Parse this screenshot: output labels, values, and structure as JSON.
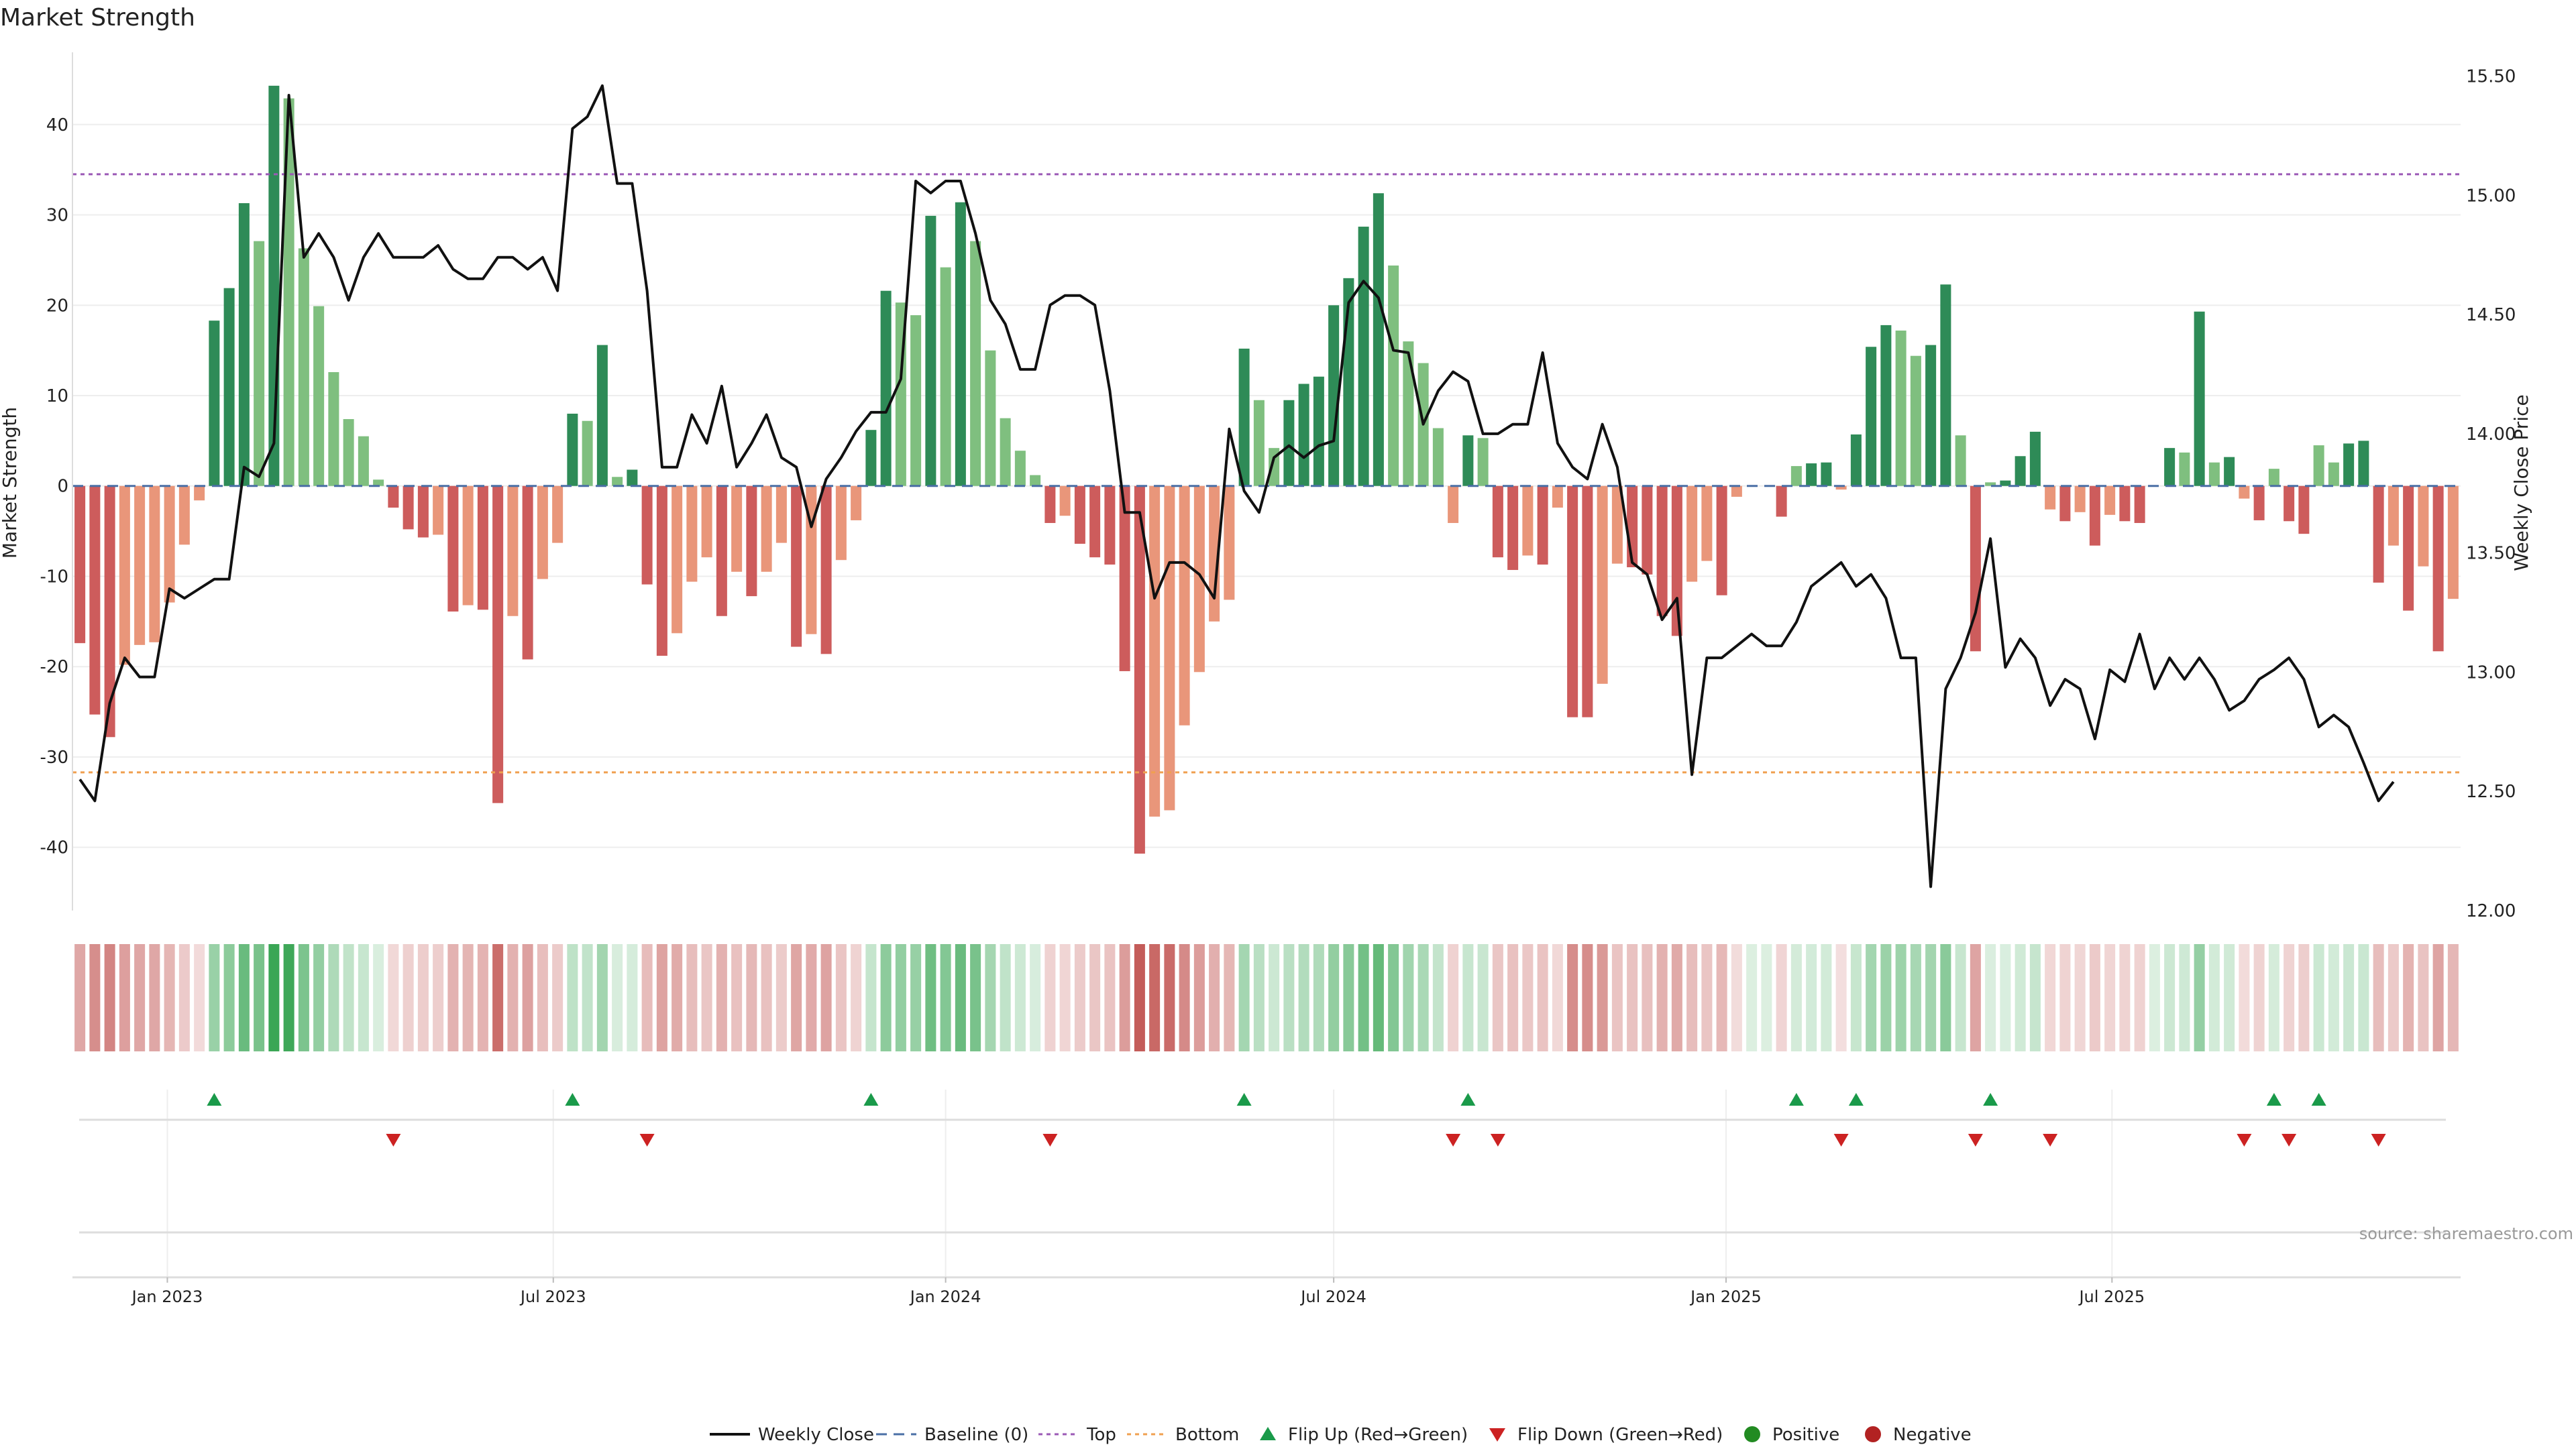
{
  "chart_data": {
    "type": "bar",
    "title": "Market Strength",
    "ylabel": "Market Strength",
    "ylabel_right": "Weekly Close Price",
    "ylim": [
      -47,
      48
    ],
    "ylim_right": [
      12.0,
      15.6
    ],
    "yticks": [
      -40,
      -30,
      -20,
      -10,
      0,
      10,
      20,
      30,
      40
    ],
    "yticks_right": [
      "12.00",
      "12.50",
      "13.00",
      "13.50",
      "14.00",
      "14.50",
      "15.00",
      "15.50"
    ],
    "top_threshold": 34.5,
    "bottom_threshold": -31.7,
    "x_start": "2022-11-21",
    "bar_interval_days": 7,
    "x_tick_labels": [
      {
        "label": "Jan 2023",
        "date": "2023-01-01"
      },
      {
        "label": "Jul 2023",
        "date": "2023-07-01"
      },
      {
        "label": "Jan 2024",
        "date": "2024-01-01"
      },
      {
        "label": "Jul 2024",
        "date": "2024-07-01"
      },
      {
        "label": "Jan 2025",
        "date": "2025-01-01"
      },
      {
        "label": "Jul 2025",
        "date": "2025-07-01"
      }
    ],
    "strength": [
      -17.4,
      -25.3,
      -27.8,
      -19.8,
      -17.6,
      -17.3,
      -12.9,
      -6.5,
      -1.6,
      18.3,
      21.9,
      31.3,
      27.1,
      44.3,
      42.9,
      26.3,
      19.9,
      12.6,
      7.4,
      5.5,
      0.7,
      -2.4,
      -4.8,
      -5.7,
      -5.4,
      -13.9,
      -13.2,
      -13.7,
      -35.1,
      -14.4,
      -19.2,
      -10.3,
      -6.3,
      8.0,
      7.2,
      15.6,
      1.0,
      1.8,
      -10.9,
      -18.8,
      -16.3,
      -10.6,
      -7.9,
      -14.4,
      -9.5,
      -12.2,
      -9.5,
      -6.3,
      -17.8,
      -16.4,
      -18.6,
      -8.2,
      -3.8,
      6.2,
      21.6,
      20.3,
      18.9,
      29.9,
      24.2,
      31.4,
      27.1,
      15.0,
      7.5,
      3.9,
      1.2,
      -4.1,
      -3.3,
      -6.4,
      -7.9,
      -8.7,
      -20.5,
      -40.7,
      -36.6,
      -35.9,
      -26.5,
      -20.6,
      -15.0,
      -12.6,
      15.2,
      9.5,
      4.2,
      9.5,
      11.3,
      12.1,
      20.0,
      23.0,
      28.7,
      32.4,
      24.4,
      16.0,
      13.6,
      6.4,
      -4.1,
      5.6,
      5.3,
      -7.9,
      -9.3,
      -7.7,
      -8.7,
      -2.4,
      -25.6,
      -25.6,
      -21.9,
      -8.6,
      -9.0,
      -9.8,
      -14.4,
      -16.6,
      -10.6,
      -8.3,
      -12.1,
      -1.2,
      0,
      0,
      -3.4,
      2.2,
      2.5,
      2.6,
      -0.4,
      5.7,
      15.4,
      17.8,
      17.2,
      14.4,
      15.6,
      22.3,
      5.6,
      -18.3,
      0.4,
      0.6,
      3.3,
      6.0,
      -2.6,
      -3.9,
      -2.9,
      -6.6,
      -3.2,
      -3.9,
      -4.1,
      0,
      4.2,
      3.7,
      19.3,
      2.6,
      3.2,
      -1.4,
      -3.8,
      1.9,
      -3.9,
      -5.3,
      4.5,
      2.6,
      4.7,
      5.0,
      -10.7,
      -6.6,
      -13.8,
      -8.9,
      -18.3,
      -12.5
    ],
    "close": [
      12.55,
      12.46,
      12.87,
      13.06,
      12.98,
      12.98,
      13.35,
      13.31,
      13.35,
      13.39,
      13.39,
      13.86,
      13.82,
      13.96,
      15.42,
      14.74,
      14.84,
      14.74,
      14.56,
      14.74,
      14.84,
      14.74,
      14.74,
      14.74,
      14.79,
      14.69,
      14.65,
      14.65,
      14.74,
      14.74,
      14.69,
      14.74,
      14.6,
      15.28,
      15.33,
      15.46,
      15.05,
      15.05,
      14.6,
      13.86,
      13.86,
      14.08,
      13.96,
      14.2,
      13.86,
      13.96,
      14.08,
      13.9,
      13.86,
      13.61,
      13.81,
      13.9,
      14.01,
      14.09,
      14.09,
      14.23,
      15.06,
      15.01,
      15.06,
      15.06,
      14.84,
      14.56,
      14.46,
      14.27,
      14.27,
      14.54,
      14.58,
      14.58,
      14.54,
      14.18,
      13.67,
      13.67,
      13.31,
      13.46,
      13.46,
      13.41,
      13.31,
      14.02,
      13.76,
      13.67,
      13.9,
      13.95,
      13.9,
      13.95,
      13.97,
      14.55,
      14.64,
      14.57,
      14.35,
      14.34,
      14.04,
      14.18,
      14.26,
      14.22,
      14.0,
      14.0,
      14.04,
      14.04,
      14.34,
      13.96,
      13.86,
      13.81,
      14.04,
      13.86,
      13.46,
      13.41,
      13.22,
      13.31,
      12.57,
      13.06,
      13.06,
      13.11,
      13.16,
      13.11,
      13.11,
      13.21,
      13.36,
      13.41,
      13.46,
      13.36,
      13.41,
      13.31,
      13.06,
      13.06,
      12.1,
      12.93,
      13.06,
      13.25,
      13.56,
      13.02,
      13.14,
      13.06,
      12.86,
      12.97,
      12.93,
      12.72,
      13.01,
      12.96,
      13.16,
      12.93,
      13.06,
      12.97,
      13.06,
      12.97,
      12.84,
      12.88,
      12.97,
      13.01,
      13.06,
      12.97,
      12.77,
      12.82,
      12.77,
      12.62,
      12.46,
      12.54
    ]
  },
  "legend": {
    "items": [
      {
        "label": "Weekly Close"
      },
      {
        "label": "Baseline (0)"
      },
      {
        "label": "Top"
      },
      {
        "label": "Bottom"
      },
      {
        "label": "Flip Up (Red→Green)"
      },
      {
        "label": "Flip Down (Green→Red)"
      },
      {
        "label": "Positive"
      },
      {
        "label": "Negative"
      }
    ]
  },
  "source_note": "source: sharemaestro.com",
  "colors": {
    "pos_strong": "#2e8b57",
    "pos_weak": "#7fbf7f",
    "neg_strong": "#cd5c5c",
    "neg_weak": "#e9967a",
    "line": "#111111",
    "baseline": "#4a6fa5",
    "top": "#9b59b6",
    "bottom": "#f0a050",
    "flip_up": "#1a9a4a",
    "flip_down": "#cc2222",
    "positive_dot": "#228b22",
    "negative_dot": "#b22222"
  }
}
